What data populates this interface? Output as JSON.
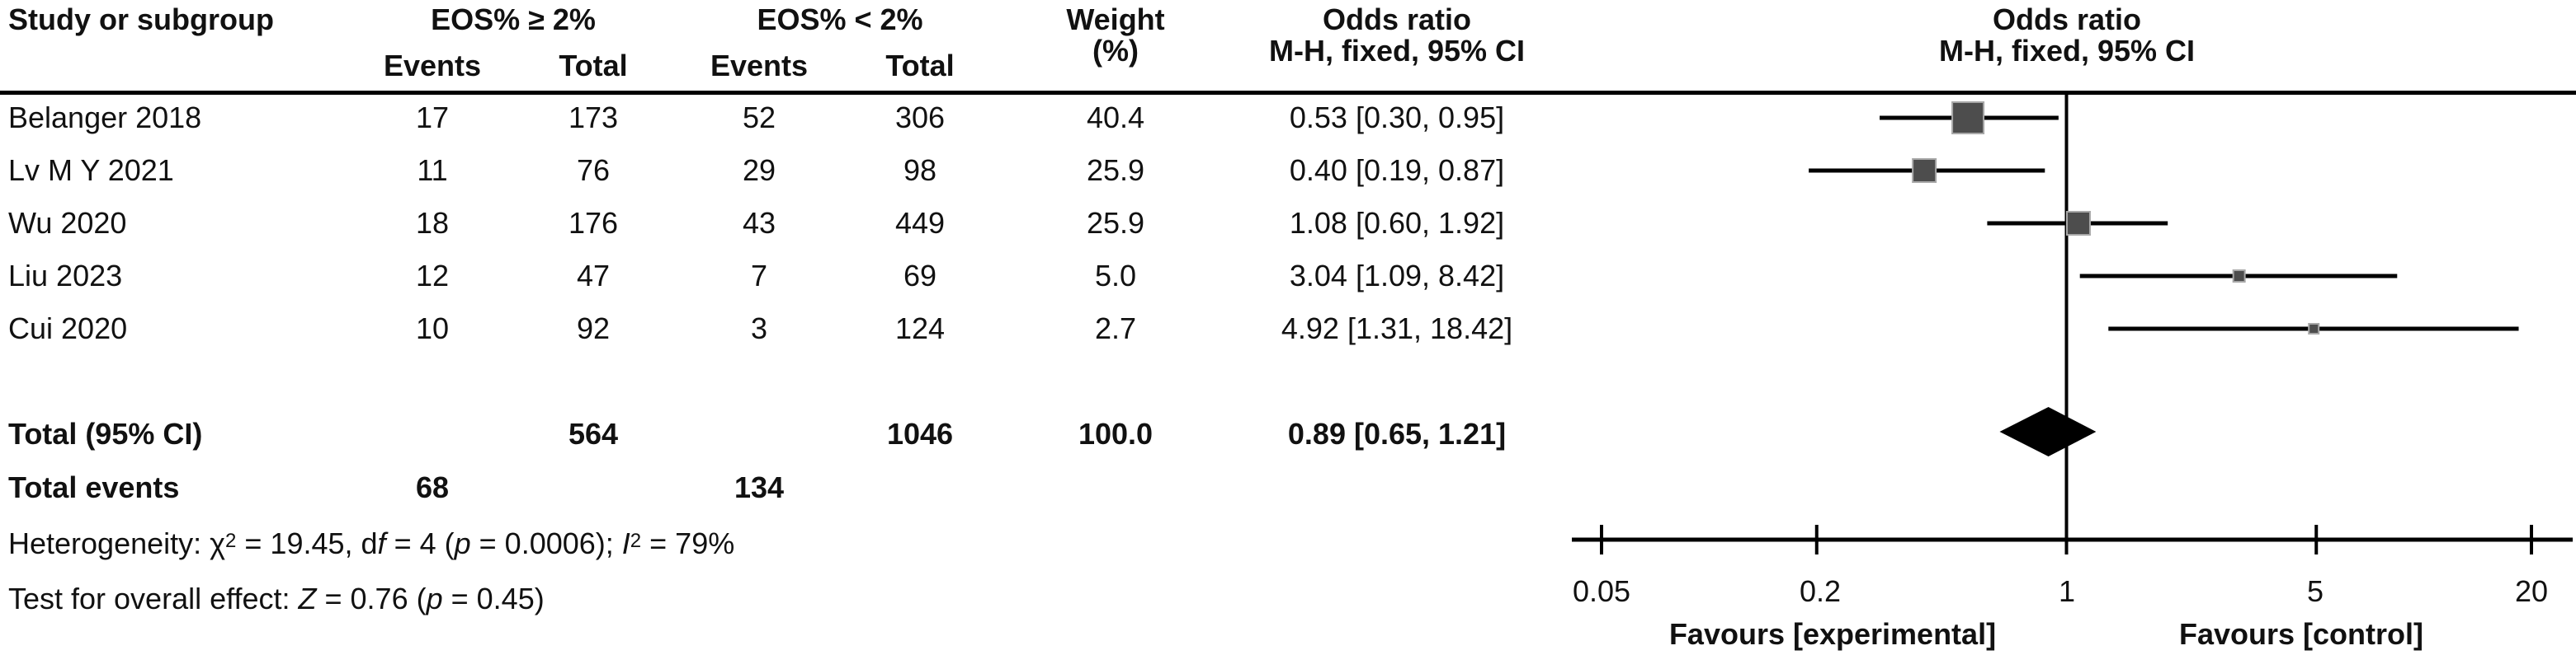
{
  "table": {
    "study_header": "Study or subgroup",
    "group1": {
      "label": "EOS% ≥ 2%",
      "events": "Events",
      "total": "Total"
    },
    "group2": {
      "label": "EOS% < 2%",
      "events": "Events",
      "total": "Total"
    },
    "weight_header": {
      "line1": "Weight",
      "line2": "(%)"
    },
    "or_header": {
      "line1": "Odds ratio",
      "line2": "M-H, fixed, 95% CI"
    },
    "rows": [
      {
        "study": "Belanger 2018",
        "e1": "17",
        "t1": "173",
        "e2": "52",
        "t2": "306",
        "weight": "40.4",
        "or_ci": "0.53 [0.30, 0.95]"
      },
      {
        "study": "Lv M Y 2021",
        "e1": "11",
        "t1": "76",
        "e2": "29",
        "t2": "98",
        "weight": "25.9",
        "or_ci": "0.40 [0.19, 0.87]"
      },
      {
        "study": "Wu 2020",
        "e1": "18",
        "t1": "176",
        "e2": "43",
        "t2": "449",
        "weight": "25.9",
        "or_ci": "1.08 [0.60, 1.92]"
      },
      {
        "study": "Liu 2023",
        "e1": "12",
        "t1": "47",
        "e2": "7",
        "t2": "69",
        "weight": "5.0",
        "or_ci": "3.04 [1.09, 8.42]"
      },
      {
        "study": "Cui 2020",
        "e1": "10",
        "t1": "92",
        "e2": "3",
        "t2": "124",
        "weight": "2.7",
        "or_ci": "4.92 [1.31, 18.42]"
      }
    ],
    "total_row": {
      "label": "Total (95% CI)",
      "t1": "564",
      "t2": "1046",
      "weight": "100.0",
      "or_ci": "0.89 [0.65, 1.21]"
    },
    "total_events": {
      "label": "Total events",
      "e1": "68",
      "e2": "134"
    }
  },
  "plot": {
    "header": {
      "line1": "Odds ratio",
      "line2": "M-H, fixed, 95% CI"
    },
    "tick_labels": [
      "0.05",
      "0.2",
      "1",
      "5",
      "20"
    ],
    "favours_left": "Favours [experimental]",
    "favours_right": "Favours [control]"
  },
  "footer": {
    "het": {
      "p1": "Heterogeneity: χ",
      "sup1": "2",
      "p2": " = 19.45, d",
      "f": "f",
      "p3": " = 4 (",
      "p": "p",
      "p4": " = 0.0006); ",
      "i": "I",
      "sup2": "2",
      "p5": " = 79%"
    },
    "test": {
      "p1": "Test for overall effect: ",
      "z": "Z",
      "p2": " = 0.76 (",
      "p": "p",
      "p3": " = 0.45)"
    }
  },
  "colors": {
    "marker_fill": "#4d4d4d",
    "marker_border": "#a8a8a8",
    "line": "#000000",
    "diamond": "#000000"
  },
  "chart_data": {
    "type": "forest",
    "measure": "Odds ratio  M-H, fixed, 95% CI",
    "x_scale": "log",
    "axis": {
      "min": 0.05,
      "max": 20,
      "ticks": [
        0.05,
        0.2,
        1,
        5,
        20
      ],
      "reference": 1
    },
    "studies": [
      {
        "name": "Belanger 2018",
        "events1": 17,
        "total1": 173,
        "events2": 52,
        "total2": 306,
        "weight_pct": 40.4,
        "or": 0.53,
        "ci": [
          0.3,
          0.95
        ]
      },
      {
        "name": "Lv M Y 2021",
        "events1": 11,
        "total1": 76,
        "events2": 29,
        "total2": 98,
        "weight_pct": 25.9,
        "or": 0.4,
        "ci": [
          0.19,
          0.87
        ]
      },
      {
        "name": "Wu 2020",
        "events1": 18,
        "total1": 176,
        "events2": 43,
        "total2": 449,
        "weight_pct": 25.9,
        "or": 1.08,
        "ci": [
          0.6,
          1.92
        ]
      },
      {
        "name": "Liu 2023",
        "events1": 12,
        "total1": 47,
        "events2": 7,
        "total2": 69,
        "weight_pct": 5.0,
        "or": 3.04,
        "ci": [
          1.09,
          8.42
        ]
      },
      {
        "name": "Cui 2020",
        "events1": 10,
        "total1": 92,
        "events2": 3,
        "total2": 124,
        "weight_pct": 2.7,
        "or": 4.92,
        "ci": [
          1.31,
          18.42
        ]
      }
    ],
    "total": {
      "label": "Total (95% CI)",
      "total1": 564,
      "total2": 1046,
      "weight_pct": 100.0,
      "or": 0.89,
      "ci": [
        0.65,
        1.21
      ]
    },
    "total_events": {
      "group1": 68,
      "group2": 134
    },
    "heterogeneity": "χ² = 19.45, df = 4 (p = 0.0006); I² = 79%",
    "overall_effect": "Z = 0.76 (p = 0.45)",
    "favours": [
      "Favours [experimental]",
      "Favours [control]"
    ]
  }
}
